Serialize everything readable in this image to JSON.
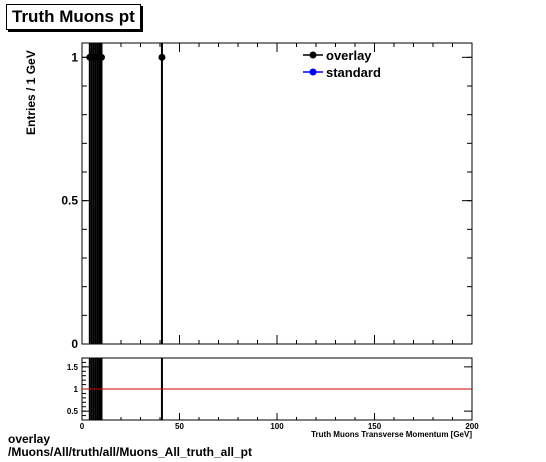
{
  "chart_data": {
    "type": "scatter",
    "title": "Truth Muons pt",
    "ylabel": "Entries / 1 GeV",
    "xlabel": "Truth Muons Transverse Momentum [GeV]",
    "xlim": [
      0,
      200
    ],
    "ylim": [
      0,
      1.05
    ],
    "x_ticks": [
      0,
      50,
      100,
      150,
      200
    ],
    "y_ticks": [
      0,
      0.5,
      1
    ],
    "y_tick_labels": [
      "0",
      "0.5",
      "1"
    ],
    "legend_position": "top-right",
    "series": [
      {
        "name": "overlay",
        "color": "#000000",
        "marker": "filled-circle",
        "x": [
          4,
          5,
          6,
          7,
          8,
          9,
          10,
          41
        ],
        "y": [
          1,
          1,
          1,
          1,
          1,
          1,
          1,
          1
        ]
      },
      {
        "name": "standard",
        "color": "#0000ff",
        "marker": "filled-circle",
        "x": [],
        "y": []
      }
    ],
    "ratio_panel": {
      "ylim": [
        0.3,
        1.7
      ],
      "y_ticks": [
        0.5,
        1,
        1.5
      ],
      "y_tick_labels": [
        "0.5",
        "1",
        "1.5"
      ],
      "reference_line": 1,
      "reference_color": "#cc0000",
      "x": [
        4,
        5,
        6,
        7,
        8,
        9,
        10,
        41
      ]
    }
  },
  "footer": {
    "line1": "overlay",
    "line2": "/Muons/All/truth/all/Muons_All_truth_all_pt"
  }
}
